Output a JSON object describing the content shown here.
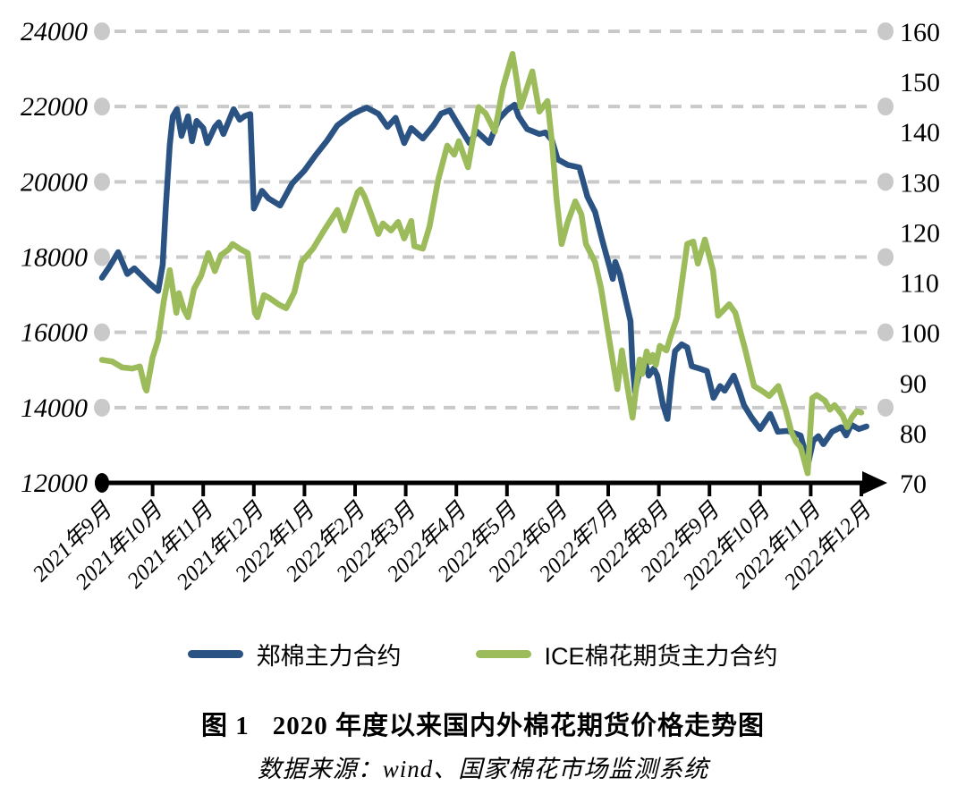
{
  "figure": {
    "caption_prefix": "图 1",
    "caption_title": "2020 年度以来国内外棉花期货价格走势图",
    "source": "数据来源：wind、国家棉花市场监测系统"
  },
  "chart_data": {
    "type": "line",
    "title": "2020 年度以来国内外棉花期货价格走势图",
    "grid": "horizontal dashed, light gray, dot at each end",
    "legend_position": "bottom",
    "x_note": "x = months since 2021-09 (0 = 2021年9月, 15 = 2022年12月)",
    "x_labels": [
      "2021年9月",
      "2021年10月",
      "2021年11月",
      "2021年12月",
      "2022年1月",
      "2022年2月",
      "2022年3月",
      "2022年4月",
      "2022年5月",
      "2022年6月",
      "2022年7月",
      "2022年8月",
      "2022年9月",
      "2022年10月",
      "2022年11月",
      "2022年12月"
    ],
    "y_left": {
      "min": 12000,
      "max": 24000,
      "ticks": [
        24000,
        22000,
        20000,
        18000,
        16000,
        14000,
        12000
      ]
    },
    "y_right": {
      "min": 70,
      "max": 160,
      "ticks": [
        160,
        150,
        140,
        130,
        120,
        110,
        100,
        90,
        80,
        70
      ]
    },
    "colors": {
      "grid": "#C9C9C9",
      "axis": "#000000",
      "zheng_blue": "#2A5384",
      "ice_green": "#9CBB5B"
    },
    "series": [
      {
        "name": "郑棉主力合约",
        "axis": "left",
        "color": "#2A5384",
        "points": [
          [
            0,
            17450
          ],
          [
            0.15,
            17750
          ],
          [
            0.32,
            18130
          ],
          [
            0.5,
            17550
          ],
          [
            0.64,
            17700
          ],
          [
            0.94,
            17300
          ],
          [
            1.11,
            17100
          ],
          [
            1.2,
            17800
          ],
          [
            1.26,
            19300
          ],
          [
            1.34,
            20980
          ],
          [
            1.4,
            21740
          ],
          [
            1.48,
            21930
          ],
          [
            1.57,
            21220
          ],
          [
            1.7,
            21740
          ],
          [
            1.78,
            21080
          ],
          [
            1.87,
            21620
          ],
          [
            2.0,
            21430
          ],
          [
            2.08,
            21030
          ],
          [
            2.23,
            21460
          ],
          [
            2.31,
            21580
          ],
          [
            2.4,
            21270
          ],
          [
            2.53,
            21700
          ],
          [
            2.6,
            21930
          ],
          [
            2.72,
            21650
          ],
          [
            2.82,
            21750
          ],
          [
            2.93,
            21800
          ],
          [
            3.0,
            19290
          ],
          [
            3.16,
            19760
          ],
          [
            3.29,
            19560
          ],
          [
            3.52,
            19370
          ],
          [
            3.76,
            19960
          ],
          [
            4.0,
            20300
          ],
          [
            4.22,
            20710
          ],
          [
            4.45,
            21100
          ],
          [
            4.65,
            21500
          ],
          [
            4.93,
            21780
          ],
          [
            5.1,
            21900
          ],
          [
            5.23,
            21970
          ],
          [
            5.46,
            21810
          ],
          [
            5.64,
            21460
          ],
          [
            5.8,
            21700
          ],
          [
            5.97,
            21030
          ],
          [
            6.11,
            21430
          ],
          [
            6.34,
            21150
          ],
          [
            6.55,
            21500
          ],
          [
            6.7,
            21815
          ],
          [
            6.87,
            21900
          ],
          [
            7.0,
            21600
          ],
          [
            7.26,
            21030
          ],
          [
            7.4,
            21340
          ],
          [
            7.65,
            21030
          ],
          [
            7.84,
            21670
          ],
          [
            8.0,
            21900
          ],
          [
            8.15,
            22050
          ],
          [
            8.23,
            21740
          ],
          [
            8.4,
            21400
          ],
          [
            8.64,
            21270
          ],
          [
            8.76,
            21310
          ],
          [
            8.89,
            21100
          ],
          [
            9.0,
            20600
          ],
          [
            9.2,
            20450
          ],
          [
            9.43,
            20380
          ],
          [
            9.59,
            19600
          ],
          [
            9.74,
            19200
          ],
          [
            9.88,
            18460
          ],
          [
            10.0,
            17870
          ],
          [
            10.09,
            17420
          ],
          [
            10.14,
            17870
          ],
          [
            10.23,
            17540
          ],
          [
            10.35,
            16830
          ],
          [
            10.44,
            16300
          ],
          [
            10.48,
            15100
          ],
          [
            10.53,
            14400
          ],
          [
            10.65,
            15160
          ],
          [
            10.73,
            15200
          ],
          [
            10.8,
            14850
          ],
          [
            10.9,
            15040
          ],
          [
            10.97,
            14850
          ],
          [
            11.08,
            14090
          ],
          [
            11.17,
            13700
          ],
          [
            11.25,
            14800
          ],
          [
            11.32,
            15500
          ],
          [
            11.45,
            15680
          ],
          [
            11.56,
            15600
          ],
          [
            11.65,
            15100
          ],
          [
            11.8,
            15040
          ],
          [
            11.95,
            14970
          ],
          [
            12.08,
            14260
          ],
          [
            12.21,
            14570
          ],
          [
            12.3,
            14450
          ],
          [
            12.48,
            14850
          ],
          [
            12.6,
            14400
          ],
          [
            12.68,
            14070
          ],
          [
            12.83,
            13740
          ],
          [
            13.0,
            13430
          ],
          [
            13.2,
            13830
          ],
          [
            13.35,
            13360
          ],
          [
            13.55,
            13380
          ],
          [
            13.8,
            13260
          ],
          [
            13.95,
            12520
          ],
          [
            14.05,
            13120
          ],
          [
            14.15,
            13240
          ],
          [
            14.25,
            13030
          ],
          [
            14.42,
            13360
          ],
          [
            14.6,
            13480
          ],
          [
            14.7,
            13260
          ],
          [
            14.8,
            13545
          ],
          [
            14.95,
            13430
          ],
          [
            15.1,
            13500
          ]
        ]
      },
      {
        "name": "ICE棉花期货主力合约",
        "axis": "right",
        "color": "#9CBB5B",
        "points": [
          [
            0,
            94.5
          ],
          [
            0.2,
            94.2
          ],
          [
            0.4,
            93.0
          ],
          [
            0.6,
            92.8
          ],
          [
            0.75,
            93.2
          ],
          [
            0.85,
            89.0
          ],
          [
            0.88,
            88.4
          ],
          [
            1.0,
            95.0
          ],
          [
            1.11,
            98.5
          ],
          [
            1.22,
            106.2
          ],
          [
            1.34,
            112.4
          ],
          [
            1.47,
            103.9
          ],
          [
            1.52,
            107.8
          ],
          [
            1.62,
            104.5
          ],
          [
            1.7,
            103.0
          ],
          [
            1.82,
            108.7
          ],
          [
            1.96,
            111.3
          ],
          [
            2.1,
            115.8
          ],
          [
            2.23,
            112.2
          ],
          [
            2.35,
            115.4
          ],
          [
            2.5,
            116.5
          ],
          [
            2.58,
            117.6
          ],
          [
            2.75,
            116.5
          ],
          [
            2.88,
            115.8
          ],
          [
            3.02,
            103.9
          ],
          [
            3.07,
            103.0
          ],
          [
            3.2,
            107.4
          ],
          [
            3.3,
            106.9
          ],
          [
            3.5,
            105.5
          ],
          [
            3.64,
            104.8
          ],
          [
            3.8,
            108.0
          ],
          [
            3.94,
            114.0
          ],
          [
            4.17,
            116.7
          ],
          [
            4.4,
            120.5
          ],
          [
            4.65,
            124.4
          ],
          [
            4.79,
            120.3
          ],
          [
            5.05,
            127.9
          ],
          [
            5.11,
            128.5
          ],
          [
            5.19,
            127.0
          ],
          [
            5.3,
            124.0
          ],
          [
            5.46,
            119.6
          ],
          [
            5.55,
            121.7
          ],
          [
            5.71,
            120.3
          ],
          [
            5.85,
            122.0
          ],
          [
            5.97,
            118.7
          ],
          [
            6.11,
            122.2
          ],
          [
            6.17,
            117.2
          ],
          [
            6.34,
            116.7
          ],
          [
            6.47,
            121.1
          ],
          [
            6.64,
            130.3
          ],
          [
            6.82,
            137.2
          ],
          [
            6.96,
            135.4
          ],
          [
            7.05,
            138.1
          ],
          [
            7.23,
            132.9
          ],
          [
            7.44,
            144.9
          ],
          [
            7.58,
            143.6
          ],
          [
            7.76,
            140.0
          ],
          [
            7.92,
            148.8
          ],
          [
            8.11,
            155.5
          ],
          [
            8.2,
            149.9
          ],
          [
            8.27,
            144.9
          ],
          [
            8.5,
            152.0
          ],
          [
            8.64,
            144.0
          ],
          [
            8.8,
            146.1
          ],
          [
            8.89,
            137.7
          ],
          [
            8.98,
            126.5
          ],
          [
            9.08,
            117.6
          ],
          [
            9.2,
            122.0
          ],
          [
            9.35,
            126.1
          ],
          [
            9.47,
            123.5
          ],
          [
            9.56,
            117.6
          ],
          [
            9.74,
            114.0
          ],
          [
            9.86,
            108.7
          ],
          [
            10.0,
            99.8
          ],
          [
            10.18,
            88.7
          ],
          [
            10.27,
            96.4
          ],
          [
            10.35,
            91.0
          ],
          [
            10.48,
            83.0
          ],
          [
            10.62,
            94.6
          ],
          [
            10.67,
            91.7
          ],
          [
            10.76,
            96.2
          ],
          [
            10.83,
            94.1
          ],
          [
            10.88,
            95.5
          ],
          [
            10.94,
            93.5
          ],
          [
            11.02,
            97.3
          ],
          [
            11.15,
            96.4
          ],
          [
            11.24,
            99.4
          ],
          [
            11.36,
            103.0
          ],
          [
            11.47,
            111.0
          ],
          [
            11.56,
            117.6
          ],
          [
            11.68,
            118.1
          ],
          [
            11.77,
            113.7
          ],
          [
            11.91,
            118.5
          ],
          [
            12.07,
            112.3
          ],
          [
            12.17,
            103.3
          ],
          [
            12.39,
            105.6
          ],
          [
            12.51,
            103.9
          ],
          [
            12.7,
            96.8
          ],
          [
            12.88,
            89.3
          ],
          [
            13.04,
            88.3
          ],
          [
            13.18,
            87.3
          ],
          [
            13.36,
            89.3
          ],
          [
            13.5,
            84.8
          ],
          [
            13.62,
            80.1
          ],
          [
            13.71,
            78.2
          ],
          [
            13.8,
            77.1
          ],
          [
            13.94,
            71.9
          ],
          [
            14.03,
            86.9
          ],
          [
            14.12,
            87.5
          ],
          [
            14.28,
            86.4
          ],
          [
            14.38,
            84.6
          ],
          [
            14.47,
            85.5
          ],
          [
            14.63,
            83.4
          ],
          [
            14.72,
            81.1
          ],
          [
            14.81,
            83.0
          ],
          [
            14.91,
            84.3
          ],
          [
            15.0,
            84.0
          ]
        ]
      }
    ]
  }
}
